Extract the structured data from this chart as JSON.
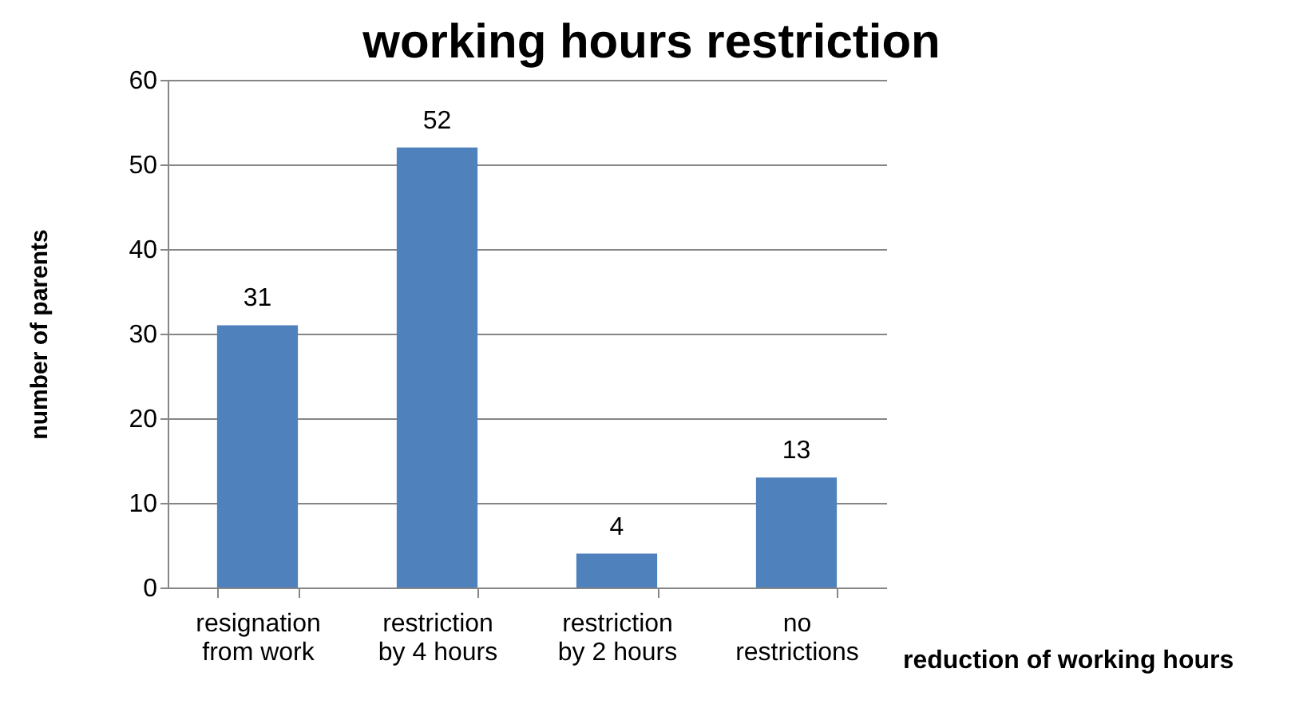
{
  "chart_data": {
    "type": "bar",
    "title": "working hours restriction",
    "xlabel": "reduction of working hours",
    "ylabel": "number of parents",
    "categories": [
      "resignation from work",
      "restriction by 4 hours",
      "restriction by 2 hours",
      "no restrictions"
    ],
    "values": [
      31,
      52,
      4,
      13
    ],
    "color": "#4f81bd",
    "ylim": [
      0,
      60
    ],
    "yticks": [
      0,
      10,
      20,
      30,
      40,
      50,
      60
    ],
    "grid": "y",
    "data_labels": true
  }
}
